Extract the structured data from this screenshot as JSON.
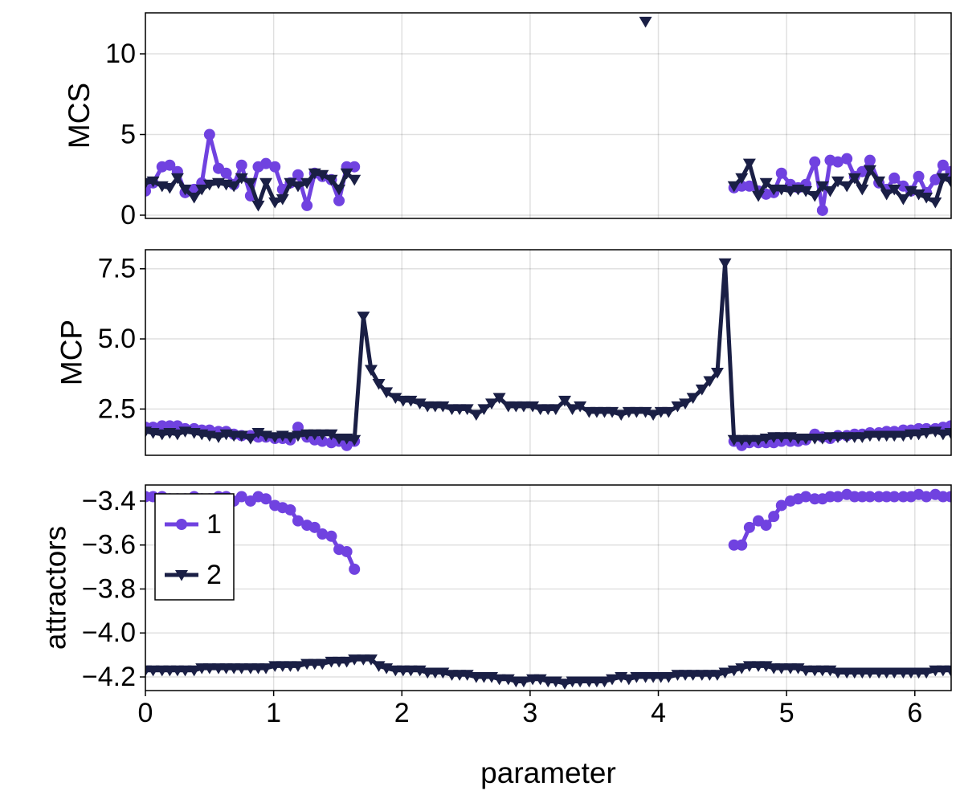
{
  "chart_data": [
    {
      "type": "line",
      "ylabel": "MCS",
      "xlim": [
        0,
        6.2832
      ],
      "xticks": [
        0,
        1,
        2,
        3,
        4,
        5,
        6
      ],
      "xticklabels": false,
      "ylim": [
        -0.2,
        12.54
      ],
      "yticks": [
        0,
        5,
        10
      ],
      "grid": true,
      "x": [
        0,
        0.06,
        0.13,
        0.19,
        0.25,
        0.31,
        0.38,
        0.44,
        0.5,
        0.57,
        0.63,
        0.69,
        0.75,
        0.82,
        0.88,
        0.94,
        1.01,
        1.07,
        1.13,
        1.19,
        1.26,
        1.32,
        1.38,
        1.45,
        1.51,
        1.57,
        1.63,
        1.7,
        1.76,
        1.82,
        1.88,
        1.95,
        2.01,
        2.07,
        2.14,
        2.2,
        2.26,
        2.32,
        2.39,
        2.45,
        2.51,
        2.58,
        2.64,
        2.7,
        2.76,
        2.83,
        2.89,
        2.95,
        3.02,
        3.08,
        3.14,
        3.2,
        3.27,
        3.33,
        3.39,
        3.46,
        3.52,
        3.58,
        3.64,
        3.71,
        3.77,
        3.83,
        3.9,
        3.96,
        4.02,
        4.08,
        4.15,
        4.21,
        4.27,
        4.34,
        4.4,
        4.46,
        4.52,
        4.59,
        4.65,
        4.71,
        4.78,
        4.84,
        4.9,
        4.96,
        5.03,
        5.09,
        5.15,
        5.22,
        5.28,
        5.34,
        5.4,
        5.47,
        5.53,
        5.59,
        5.65,
        5.72,
        5.78,
        5.84,
        5.91,
        5.97,
        6.03,
        6.09,
        6.16,
        6.22,
        6.28
      ],
      "series": [
        {
          "color": "#7042e0",
          "marker": "circle",
          "values": [
            1.5,
            2.0,
            3.0,
            3.1,
            2.7,
            1.4,
            1.6,
            2.0,
            5.0,
            2.9,
            2.6,
            1.9,
            3.1,
            1.2,
            3.0,
            3.2,
            3.0,
            1.6,
            2.0,
            2.5,
            0.6,
            2.6,
            2.4,
            2.2,
            0.9,
            3.0,
            3.0,
            null,
            null,
            null,
            null,
            null,
            null,
            null,
            null,
            null,
            null,
            null,
            null,
            null,
            null,
            null,
            null,
            null,
            null,
            null,
            null,
            null,
            null,
            null,
            null,
            null,
            null,
            null,
            null,
            null,
            null,
            null,
            null,
            null,
            null,
            null,
            null,
            null,
            null,
            null,
            null,
            null,
            null,
            null,
            null,
            null,
            null,
            1.7,
            1.8,
            1.8,
            1.5,
            1.3,
            1.4,
            2.6,
            1.9,
            1.7,
            1.9,
            3.3,
            0.3,
            3.4,
            3.3,
            3.5,
            2.4,
            2.7,
            3.4,
            2.0,
            1.6,
            2.3,
            1.8,
            1.5,
            2.4,
            1.4,
            2.2,
            3.1,
            2.7
          ]
        },
        {
          "color": "#1a1f45",
          "marker": "triangle",
          "values": [
            2.0,
            2.1,
            1.8,
            1.7,
            2.3,
            1.6,
            1.1,
            1.6,
            1.9,
            2.0,
            1.9,
            1.8,
            2.3,
            2.0,
            0.6,
            2.0,
            0.8,
            1.0,
            2.0,
            1.8,
            2.0,
            2.6,
            2.5,
            2.2,
            1.6,
            2.6,
            2.2,
            null,
            null,
            null,
            null,
            null,
            null,
            null,
            null,
            null,
            null,
            null,
            null,
            null,
            null,
            null,
            null,
            null,
            null,
            null,
            null,
            null,
            null,
            null,
            null,
            null,
            null,
            null,
            null,
            null,
            null,
            null,
            null,
            null,
            null,
            null,
            12,
            null,
            null,
            null,
            null,
            null,
            null,
            null,
            null,
            null,
            null,
            1.8,
            2.3,
            3.2,
            1.2,
            2.0,
            1.6,
            1.6,
            1.5,
            1.6,
            1.5,
            1.2,
            1.8,
            1.5,
            2.1,
            1.8,
            2.3,
            1.6,
            2.8,
            2.1,
            1.3,
            1.6,
            1.0,
            1.5,
            1.3,
            1.1,
            0.8,
            2.3,
            2.1
          ]
        }
      ]
    },
    {
      "type": "line",
      "ylabel": "MCP",
      "xlim": [
        0,
        6.2832
      ],
      "xticks": [
        0,
        1,
        2,
        3,
        4,
        5,
        6
      ],
      "xticklabels": false,
      "ylim": [
        0.85,
        8.18
      ],
      "yticks": [
        2.5,
        {
          "value": 5,
          "label": "5.0"
        },
        7.5
      ],
      "grid": true,
      "x": [
        0,
        0.06,
        0.13,
        0.19,
        0.25,
        0.31,
        0.38,
        0.44,
        0.5,
        0.57,
        0.63,
        0.69,
        0.75,
        0.82,
        0.88,
        0.94,
        1.01,
        1.07,
        1.13,
        1.19,
        1.26,
        1.32,
        1.38,
        1.45,
        1.51,
        1.57,
        1.63,
        1.7,
        1.76,
        1.82,
        1.88,
        1.95,
        2.01,
        2.07,
        2.14,
        2.2,
        2.26,
        2.32,
        2.39,
        2.45,
        2.51,
        2.58,
        2.64,
        2.7,
        2.76,
        2.83,
        2.89,
        2.95,
        3.02,
        3.08,
        3.14,
        3.2,
        3.27,
        3.33,
        3.39,
        3.46,
        3.52,
        3.58,
        3.64,
        3.71,
        3.77,
        3.83,
        3.9,
        3.96,
        4.02,
        4.08,
        4.15,
        4.21,
        4.27,
        4.34,
        4.4,
        4.46,
        4.52,
        4.59,
        4.65,
        4.71,
        4.78,
        4.84,
        4.9,
        4.96,
        5.03,
        5.09,
        5.15,
        5.22,
        5.28,
        5.34,
        5.4,
        5.47,
        5.53,
        5.59,
        5.65,
        5.72,
        5.78,
        5.84,
        5.91,
        5.97,
        6.03,
        6.09,
        6.16,
        6.22,
        6.28
      ],
      "series": [
        {
          "color": "#7042e0",
          "marker": "circle",
          "values": [
            1.85,
            1.85,
            1.9,
            1.9,
            1.9,
            1.8,
            1.8,
            1.75,
            1.75,
            1.7,
            1.7,
            1.6,
            1.55,
            1.55,
            1.5,
            1.5,
            1.45,
            1.45,
            1.4,
            1.85,
            1.5,
            1.4,
            1.35,
            1.3,
            1.35,
            1.2,
            1.35,
            null,
            null,
            null,
            null,
            null,
            null,
            null,
            null,
            null,
            null,
            null,
            null,
            null,
            null,
            null,
            null,
            null,
            null,
            null,
            null,
            null,
            null,
            null,
            null,
            null,
            null,
            null,
            null,
            null,
            null,
            null,
            null,
            null,
            null,
            null,
            null,
            null,
            null,
            null,
            null,
            null,
            null,
            null,
            null,
            null,
            null,
            1.35,
            1.2,
            1.3,
            1.3,
            1.3,
            1.3,
            1.35,
            1.35,
            1.35,
            1.4,
            1.6,
            1.5,
            1.45,
            1.55,
            1.55,
            1.6,
            1.6,
            1.65,
            1.65,
            1.7,
            1.7,
            1.75,
            1.75,
            1.8,
            1.8,
            1.8,
            1.85,
            1.9
          ]
        },
        {
          "color": "#1a1f45",
          "marker": "triangle",
          "values": [
            1.7,
            1.65,
            1.6,
            1.65,
            1.6,
            1.7,
            1.65,
            1.6,
            1.55,
            1.5,
            1.6,
            1.55,
            1.55,
            1.45,
            1.65,
            1.55,
            1.5,
            1.55,
            1.5,
            1.55,
            1.6,
            1.6,
            1.6,
            1.6,
            1.45,
            1.45,
            1.4,
            5.8,
            3.9,
            3.4,
            3.1,
            2.9,
            2.8,
            2.8,
            2.7,
            2.6,
            2.6,
            2.6,
            2.5,
            2.5,
            2.5,
            2.3,
            2.5,
            2.7,
            2.9,
            2.6,
            2.6,
            2.6,
            2.6,
            2.5,
            2.5,
            2.5,
            2.8,
            2.5,
            2.6,
            2.4,
            2.4,
            2.4,
            2.4,
            2.3,
            2.4,
            2.4,
            2.4,
            2.3,
            2.4,
            2.4,
            2.6,
            2.7,
            2.9,
            3.2,
            3.5,
            3.8,
            7.7,
            1.4,
            1.4,
            1.4,
            1.4,
            1.45,
            1.5,
            1.5,
            1.5,
            1.45,
            1.45,
            1.45,
            1.45,
            1.5,
            1.5,
            1.5,
            1.5,
            1.5,
            1.55,
            1.55,
            1.55,
            1.55,
            1.55,
            1.6,
            1.6,
            1.65,
            1.7,
            1.6,
            1.65
          ]
        }
      ]
    },
    {
      "type": "line",
      "ylabel": "attractors",
      "xlabel": "parameter",
      "xlim": [
        0,
        6.2832
      ],
      "xticks": [
        0,
        1,
        2,
        3,
        4,
        5,
        6
      ],
      "xticklabels": true,
      "ylim": [
        -4.262,
        -3.327
      ],
      "yticks": [
        {
          "value": -3.4,
          "label": "−3.4"
        },
        {
          "value": -3.6,
          "label": "−3.6"
        },
        {
          "value": -3.8,
          "label": "−3.8"
        },
        {
          "value": -4.0,
          "label": "−4.0"
        },
        {
          "value": -4.2,
          "label": "−4.2"
        }
      ],
      "grid": true,
      "legend": "upper left",
      "x": [
        0,
        0.06,
        0.13,
        0.19,
        0.25,
        0.31,
        0.38,
        0.44,
        0.5,
        0.57,
        0.63,
        0.69,
        0.75,
        0.82,
        0.88,
        0.94,
        1.01,
        1.07,
        1.13,
        1.19,
        1.26,
        1.32,
        1.38,
        1.45,
        1.51,
        1.57,
        1.63,
        1.7,
        1.76,
        1.82,
        1.88,
        1.95,
        2.01,
        2.07,
        2.14,
        2.2,
        2.26,
        2.32,
        2.39,
        2.45,
        2.51,
        2.58,
        2.64,
        2.7,
        2.76,
        2.83,
        2.89,
        2.95,
        3.02,
        3.08,
        3.14,
        3.2,
        3.27,
        3.33,
        3.39,
        3.46,
        3.52,
        3.58,
        3.64,
        3.71,
        3.77,
        3.83,
        3.9,
        3.96,
        4.02,
        4.08,
        4.15,
        4.21,
        4.27,
        4.34,
        4.4,
        4.46,
        4.52,
        4.59,
        4.65,
        4.71,
        4.78,
        4.84,
        4.9,
        4.96,
        5.03,
        5.09,
        5.15,
        5.22,
        5.28,
        5.34,
        5.4,
        5.47,
        5.53,
        5.59,
        5.65,
        5.72,
        5.78,
        5.84,
        5.91,
        5.97,
        6.03,
        6.09,
        6.16,
        6.22,
        6.28
      ],
      "series": [
        {
          "name": "1",
          "color": "#7042e0",
          "marker": "circle",
          "values": [
            -3.38,
            -3.38,
            -3.38,
            -3.39,
            -3.39,
            -3.39,
            -3.38,
            -3.39,
            -3.39,
            -3.38,
            -3.38,
            -3.4,
            -3.38,
            -3.4,
            -3.38,
            -3.39,
            -3.42,
            -3.43,
            -3.44,
            -3.49,
            -3.51,
            -3.52,
            -3.55,
            -3.56,
            -3.62,
            -3.63,
            -3.71,
            null,
            null,
            null,
            null,
            null,
            null,
            null,
            null,
            null,
            null,
            null,
            null,
            null,
            null,
            null,
            null,
            null,
            null,
            null,
            null,
            null,
            null,
            null,
            null,
            null,
            null,
            null,
            null,
            null,
            null,
            null,
            null,
            null,
            null,
            null,
            null,
            null,
            null,
            null,
            null,
            null,
            null,
            null,
            null,
            null,
            null,
            -3.6,
            -3.6,
            -3.52,
            -3.49,
            -3.51,
            -3.47,
            -3.42,
            -3.4,
            -3.39,
            -3.38,
            -3.39,
            -3.39,
            -3.38,
            -3.38,
            -3.37,
            -3.38,
            -3.38,
            -3.38,
            -3.38,
            -3.38,
            -3.38,
            -3.38,
            -3.38,
            -3.37,
            -3.38,
            -3.37,
            -3.38,
            -3.38
          ]
        },
        {
          "name": "2",
          "color": "#1a1f45",
          "marker": "triangle",
          "values": [
            -4.17,
            -4.17,
            -4.17,
            -4.17,
            -4.17,
            -4.17,
            -4.17,
            -4.16,
            -4.16,
            -4.16,
            -4.16,
            -4.16,
            -4.16,
            -4.16,
            -4.16,
            -4.16,
            -4.15,
            -4.15,
            -4.15,
            -4.15,
            -4.14,
            -4.14,
            -4.14,
            -4.13,
            -4.13,
            -4.13,
            -4.12,
            -4.12,
            -4.12,
            -4.15,
            -4.16,
            -4.17,
            -4.17,
            -4.17,
            -4.17,
            -4.18,
            -4.18,
            -4.18,
            -4.19,
            -4.19,
            -4.19,
            -4.2,
            -4.2,
            -4.2,
            -4.21,
            -4.21,
            -4.22,
            -4.22,
            -4.21,
            -4.21,
            -4.22,
            -4.22,
            -4.23,
            -4.22,
            -4.22,
            -4.22,
            -4.22,
            -4.22,
            -4.21,
            -4.2,
            -4.21,
            -4.2,
            -4.2,
            -4.2,
            -4.2,
            -4.2,
            -4.19,
            -4.19,
            -4.19,
            -4.19,
            -4.19,
            -4.19,
            -4.18,
            -4.17,
            -4.16,
            -4.15,
            -4.15,
            -4.15,
            -4.16,
            -4.16,
            -4.16,
            -4.16,
            -4.17,
            -4.17,
            -4.17,
            -4.17,
            -4.18,
            -4.18,
            -4.18,
            -4.18,
            -4.18,
            -4.18,
            -4.18,
            -4.18,
            -4.18,
            -4.18,
            -4.18,
            -4.18,
            -4.17,
            -4.17,
            -4.17
          ]
        }
      ]
    }
  ]
}
